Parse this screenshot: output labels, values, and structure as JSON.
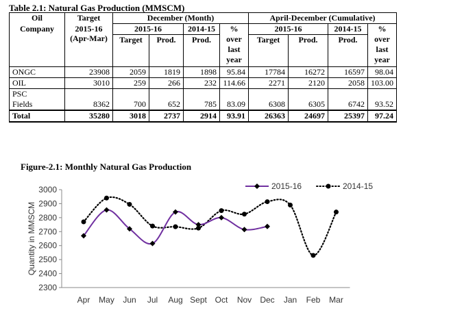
{
  "table": {
    "caption": "Table 2.1: Natural Gas Production (MMSCM)",
    "h_oil": "Oil",
    "h_company": "Company",
    "h_target": "Target",
    "h_december": "December (Month)",
    "h_aprdec": "April-December (Cumulative)",
    "h_target_year": "2015-16",
    "h_target_period": "(Apr-Mar)",
    "h_2015_16": "2015-16",
    "h_2014_15": "2014-15",
    "h_target_sub": "Target",
    "h_prod": "Prod.",
    "h_pct1": "%",
    "h_pct2": "over",
    "h_pct3": "last",
    "h_pct4": "year",
    "rows": [
      {
        "company": "ONGC",
        "company2": "",
        "target": "23908",
        "dec_target": "2059",
        "dec_prod": "1819",
        "dec_prev": "1898",
        "dec_pct": "95.84",
        "cum_target": "17784",
        "cum_prod": "16272",
        "cum_prev": "16597",
        "cum_pct": "98.04"
      },
      {
        "company": "OIL",
        "company2": "",
        "target": "3010",
        "dec_target": "259",
        "dec_prod": "266",
        "dec_prev": "232",
        "dec_pct": "114.66",
        "cum_target": "2271",
        "cum_prod": "2120",
        "cum_prev": "2058",
        "cum_pct": "103.00"
      },
      {
        "company": "PSC",
        "company2": "Fields",
        "target": "8362",
        "dec_target": "700",
        "dec_prod": "652",
        "dec_prev": "785",
        "dec_pct": "83.09",
        "cum_target": "6308",
        "cum_prod": "6305",
        "cum_prev": "6742",
        "cum_pct": "93.52"
      }
    ],
    "total": {
      "company": "Total",
      "target": "35280",
      "dec_target": "3018",
      "dec_prod": "2737",
      "dec_prev": "2914",
      "dec_pct": "93.91",
      "cum_target": "26363",
      "cum_prod": "24697",
      "cum_prev": "25397",
      "cum_pct": "97.24"
    }
  },
  "figure_caption": "Figure-2.1: Monthly Natural Gas Production",
  "chart_data": {
    "type": "line",
    "categories": [
      "Apr",
      "May",
      "Jun",
      "Jul",
      "Aug",
      "Sept",
      "Oct",
      "Nov",
      "Dec",
      "Jan",
      "Feb",
      "Mar"
    ],
    "series": [
      {
        "name": "2015-16",
        "values": [
          2670,
          2855,
          2720,
          2615,
          2840,
          2750,
          2800,
          2715,
          2737,
          null,
          null,
          null
        ],
        "color": "#7030A0",
        "style": "solid",
        "marker": "diamond"
      },
      {
        "name": "2014-15",
        "values": [
          2770,
          2940,
          2895,
          2740,
          2735,
          2725,
          2850,
          2825,
          2914,
          2890,
          2530,
          2840
        ],
        "color": "#000000",
        "style": "dotted",
        "marker": "circle"
      }
    ],
    "ylabel": "Quantity in MMSCM",
    "ylim": [
      2300,
      3000
    ],
    "yticks": [
      "3000",
      "2900",
      "2800",
      "2700",
      "2600",
      "2500",
      "2400",
      "2300"
    ],
    "grid": false,
    "legend": "top-right"
  }
}
